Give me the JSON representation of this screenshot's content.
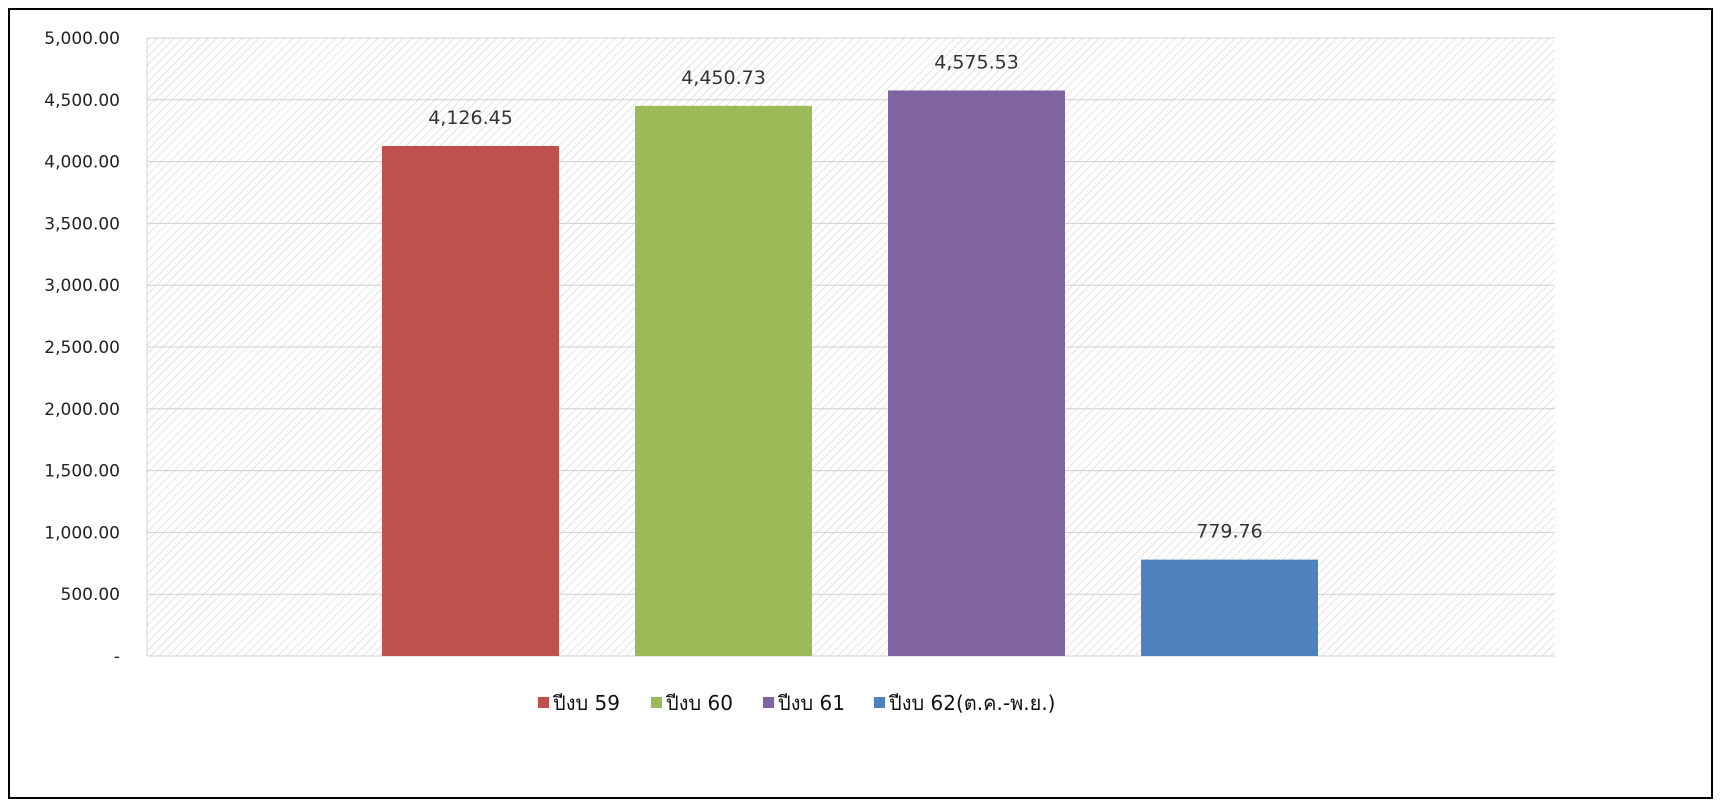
{
  "chart_data": {
    "type": "bar",
    "title": "",
    "xlabel": "",
    "ylabel": "",
    "ylim": [
      0,
      5000
    ],
    "y_ticks": [
      "-",
      "500.00",
      "1,000.00",
      "1,500.00",
      "2,000.00",
      "2,500.00",
      "3,000.00",
      "3,500.00",
      "4,000.00",
      "4,500.00",
      "5,000.00"
    ],
    "grid": true,
    "legend_position": "bottom",
    "series": [
      {
        "name": "ปีงบ 59",
        "value": 4126.45,
        "label": "4,126.45",
        "color": "#C0504D"
      },
      {
        "name": "ปีงบ 60",
        "value": 4450.73,
        "label": "4,450.73",
        "color": "#9BBB59"
      },
      {
        "name": "ปีงบ 61",
        "value": 4575.53,
        "label": "4,575.53",
        "color": "#8064A2"
      },
      {
        "name": "ปีงบ 62(ต.ค.-พ.ย.)",
        "value": 779.76,
        "label": "779.76",
        "color": "#4F81BD"
      }
    ]
  }
}
